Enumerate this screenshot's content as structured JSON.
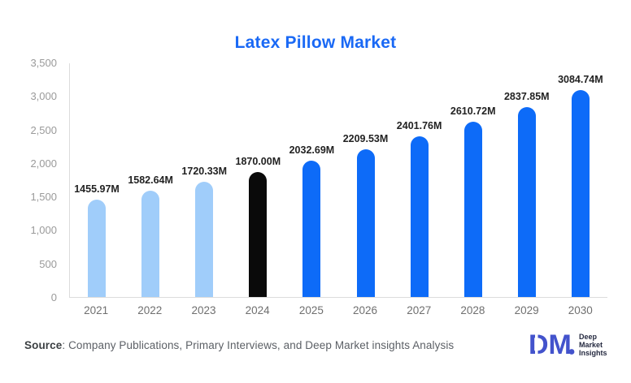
{
  "chart_data": {
    "type": "bar",
    "title": "Latex Pillow Market",
    "title_color": "#1a69f5",
    "xlabel": "",
    "ylabel": "",
    "categories": [
      "2021",
      "2022",
      "2023",
      "2024",
      "2025",
      "2026",
      "2027",
      "2028",
      "2029",
      "2030"
    ],
    "values": [
      1455.97,
      1582.64,
      1720.33,
      1870.0,
      2032.69,
      2209.53,
      2401.76,
      2610.72,
      2837.85,
      3084.74
    ],
    "data_labels": [
      "1455.97M",
      "1582.64M",
      "1720.33M",
      "1870.00M",
      "2032.69M",
      "2209.53M",
      "2401.76M",
      "2610.72M",
      "2837.85M",
      "3084.74M"
    ],
    "unit": "M",
    "ylim": [
      0,
      3500
    ],
    "y_ticks": [
      {
        "label": "0",
        "value": 0
      },
      {
        "label": "500",
        "value": 500
      },
      {
        "label": "1,000",
        "value": 1000
      },
      {
        "label": "1,500",
        "value": 1500
      },
      {
        "label": "2,000",
        "value": 2000
      },
      {
        "label": "2,500",
        "value": 2500
      },
      {
        "label": "3,000",
        "value": 3000
      },
      {
        "label": "3,500",
        "value": 3500
      }
    ],
    "grid": "off",
    "legend": "none",
    "bar_roles": [
      "past",
      "past",
      "past",
      "current",
      "forecast",
      "forecast",
      "forecast",
      "forecast",
      "forecast",
      "forecast"
    ],
    "palette": {
      "past": "#a0cdfa",
      "current": "#0a0a0a",
      "forecast": "#0d6bf8"
    }
  },
  "footer": {
    "source_label": "Source",
    "source_text": ": Company Publications, Primary Interviews, and Deep Market insights Analysis"
  },
  "logo": {
    "mark": "DM",
    "mark_color": "#4353cc",
    "text_color": "#252a40",
    "line1": "Deep",
    "line2": "Market",
    "line3": "Insights"
  }
}
